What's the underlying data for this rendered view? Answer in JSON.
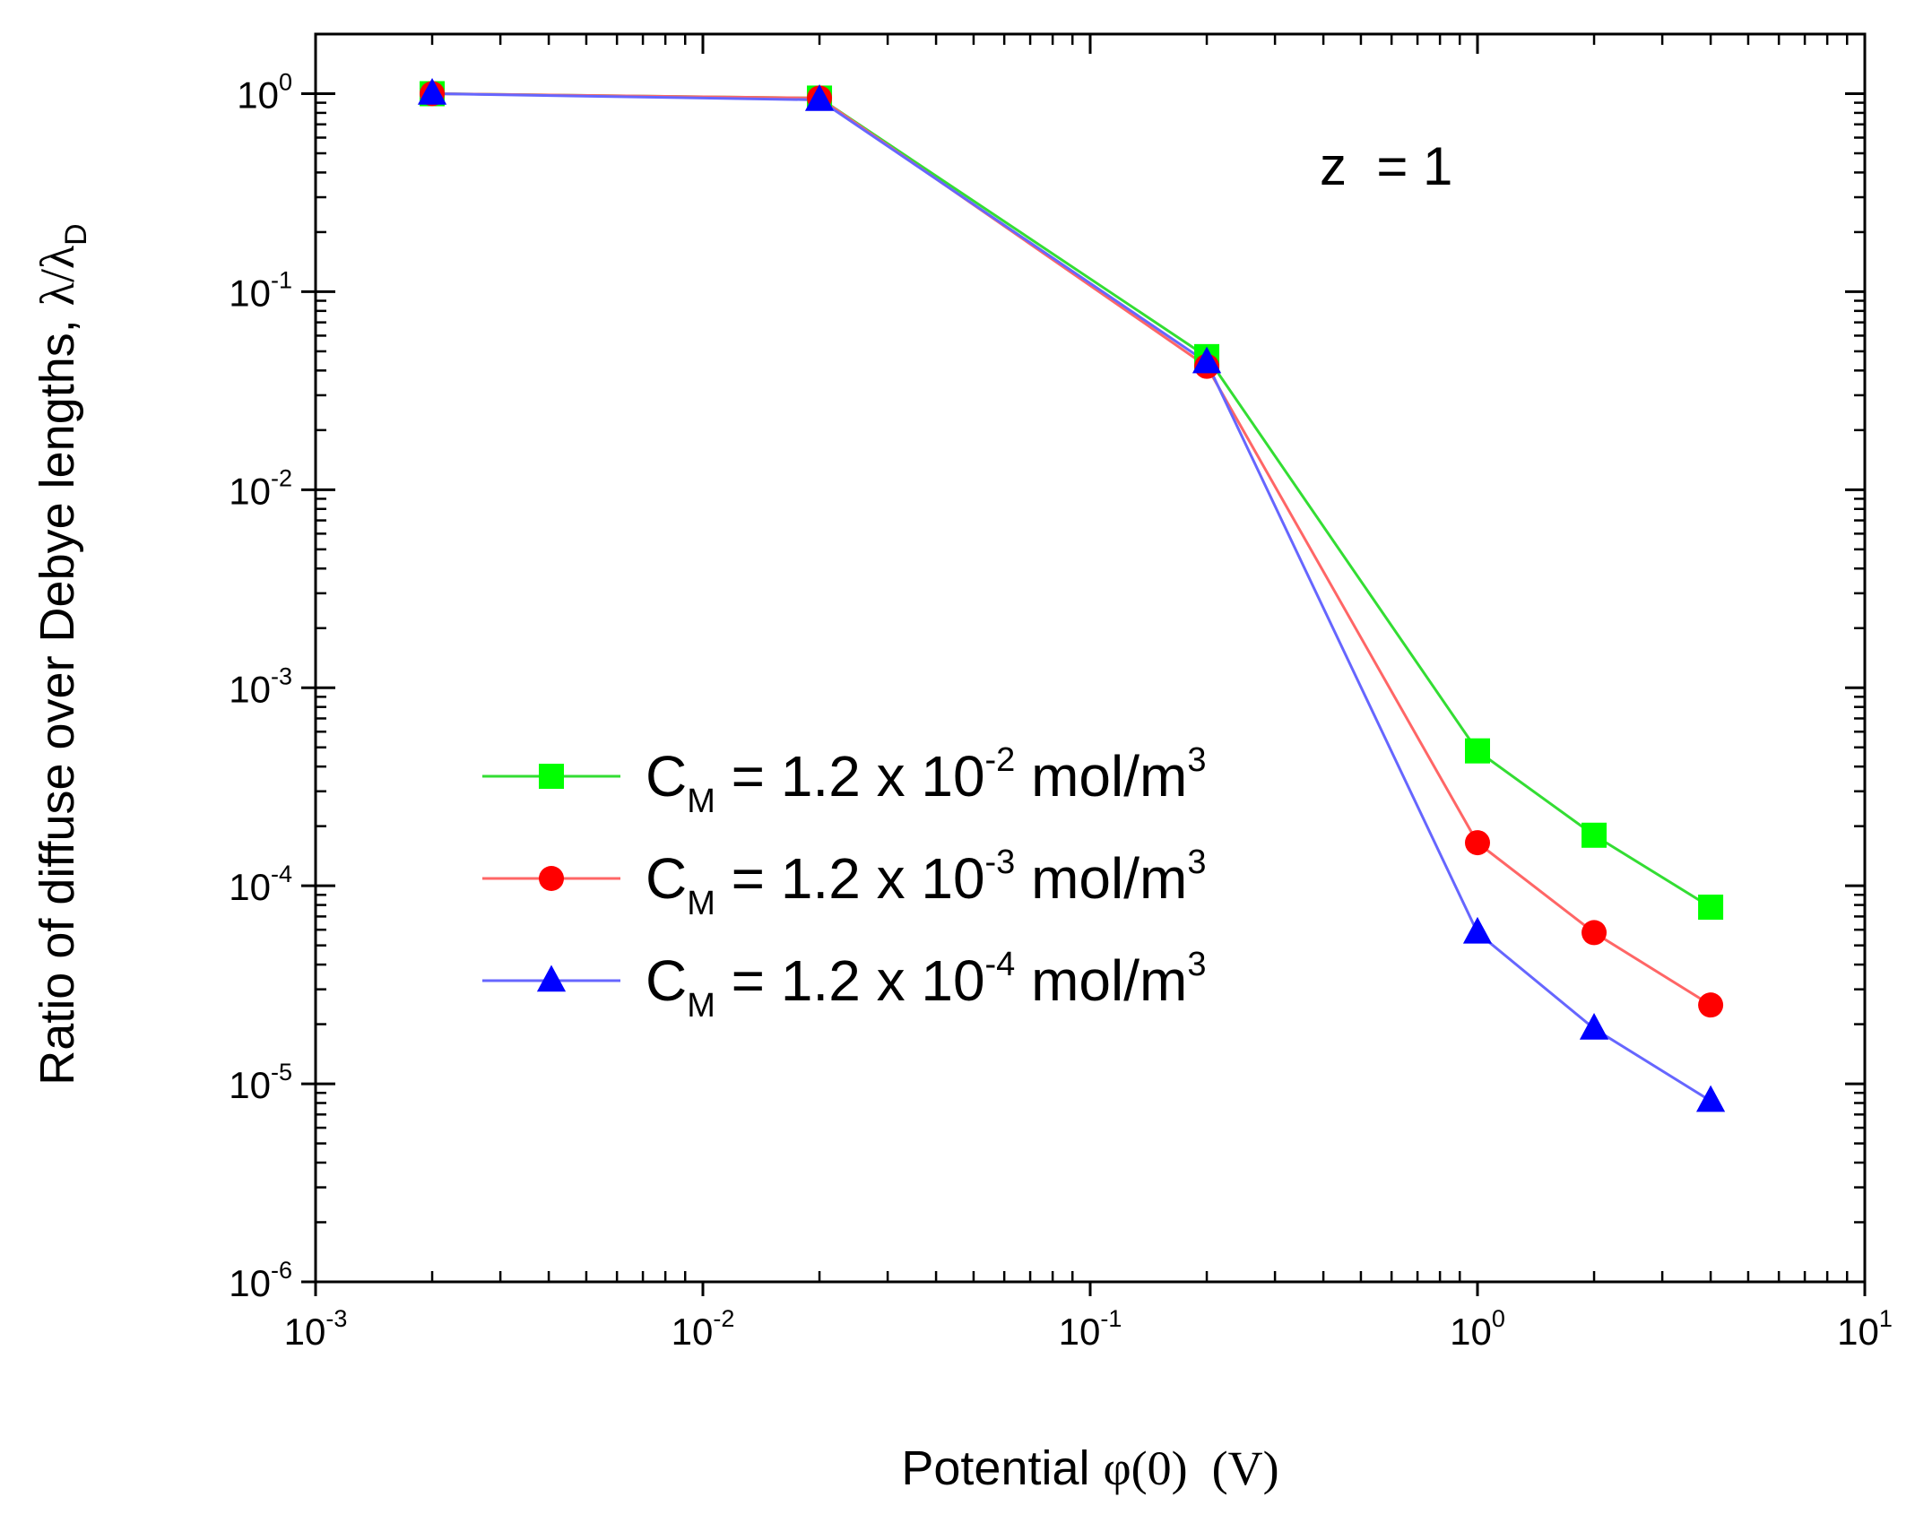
{
  "chart_data": {
    "type": "line",
    "x_scale": "log",
    "y_scale": "log",
    "xlim": [
      0.001,
      10
    ],
    "ylim": [
      1e-06,
      2
    ],
    "xlabel": {
      "prefix": "Potential ",
      "symbol": "φ(0)",
      "unit": "  (V)"
    },
    "ylabel": {
      "prefix": "Ratio of diffuse over Debye lengths, ",
      "symbol": "λ/λ",
      "sub": "D"
    },
    "x_ticks": [
      {
        "value": 0.001,
        "base": "10",
        "exp": "-3"
      },
      {
        "value": 0.01,
        "base": "10",
        "exp": "-2"
      },
      {
        "value": 0.1,
        "base": "10",
        "exp": "-1"
      },
      {
        "value": 1,
        "base": "10",
        "exp": "0"
      },
      {
        "value": 10,
        "base": "10",
        "exp": "1"
      }
    ],
    "y_ticks": [
      {
        "value": 1,
        "base": "10",
        "exp": "0"
      },
      {
        "value": 0.1,
        "base": "10",
        "exp": "-1"
      },
      {
        "value": 0.01,
        "base": "10",
        "exp": "-2"
      },
      {
        "value": 0.001,
        "base": "10",
        "exp": "-3"
      },
      {
        "value": 0.0001,
        "base": "10",
        "exp": "-4"
      },
      {
        "value": 1e-05,
        "base": "10",
        "exp": "-5"
      },
      {
        "value": 1e-06,
        "base": "10",
        "exp": "-6"
      }
    ],
    "annotation": "z  = 1",
    "legend_position": "center-left",
    "x": [
      0.002,
      0.02,
      0.2,
      1,
      2,
      4
    ],
    "series": [
      {
        "name": "C_M = 1.2 x 10^-2 mol/m^3",
        "label": {
          "c": "C",
          "sub": "M",
          "mid": " = 1.2 x 10",
          "exp": "-2",
          "unit": " mol/m",
          "unit_exp": "3"
        },
        "color": "#00ff00",
        "line_color": "#33dd33",
        "marker": "square",
        "values": [
          1.0,
          0.95,
          0.047,
          0.00048,
          0.00018,
          7.8e-05
        ]
      },
      {
        "name": "C_M = 1.2 x 10^-3 mol/m^3",
        "label": {
          "c": "C",
          "sub": "M",
          "mid": " = 1.2 x 10",
          "exp": "-3",
          "unit": " mol/m",
          "unit_exp": "3"
        },
        "color": "#ff0000",
        "line_color": "#ff6666",
        "marker": "circle",
        "values": [
          1.0,
          0.95,
          0.042,
          0.000165,
          5.8e-05,
          2.5e-05
        ]
      },
      {
        "name": "C_M = 1.2 x 10^-4 mol/m^3",
        "label": {
          "c": "C",
          "sub": "M",
          "mid": " = 1.2 x 10",
          "exp": "-4",
          "unit": " mol/m",
          "unit_exp": "3"
        },
        "color": "#0000ff",
        "line_color": "#6666ff",
        "marker": "triangle",
        "values": [
          1.0,
          0.93,
          0.044,
          5.8e-05,
          1.9e-05,
          8.2e-06
        ]
      }
    ]
  }
}
